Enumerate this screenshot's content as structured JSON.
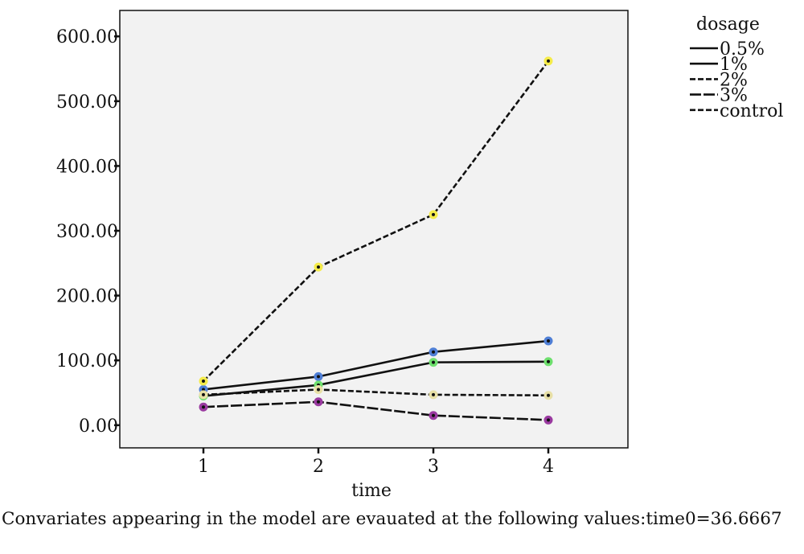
{
  "chart_data": {
    "type": "line",
    "xlabel": "time",
    "x": [
      "1",
      "2",
      "3",
      "4"
    ],
    "ylim": [
      -35,
      640
    ],
    "yticks": [
      0,
      100,
      200,
      300,
      400,
      500,
      600
    ],
    "ytick_labels": [
      "0.00",
      "100.00",
      "200.00",
      "300.00",
      "400.00",
      "500.00",
      "600.00"
    ],
    "legend_title": "dosage",
    "legend_position": "right",
    "series": [
      {
        "name": "0.5%",
        "values": [
          55,
          75,
          113,
          130
        ],
        "dash": "solid",
        "marker_color": "#4f7fd6"
      },
      {
        "name": "1%",
        "values": [
          45,
          62,
          97,
          98
        ],
        "dash": "solid",
        "marker_color": "#6ee06e"
      },
      {
        "name": "2%",
        "values": [
          47,
          55,
          47,
          46
        ],
        "dash": "dashed",
        "marker_color": "#e8e0a6"
      },
      {
        "name": "3%",
        "values": [
          28,
          36,
          15,
          8
        ],
        "dash": "longdash",
        "marker_color": "#9a3aa0"
      },
      {
        "name": "control",
        "values": [
          68,
          244,
          325,
          562
        ],
        "dash": "dashed",
        "marker_color": "#f5ec4a"
      }
    ],
    "grid": false,
    "plot_background": "#f2f2f2"
  },
  "footnote": "Convariates appearing in the model are evauated at the following values:time0=36.6667"
}
